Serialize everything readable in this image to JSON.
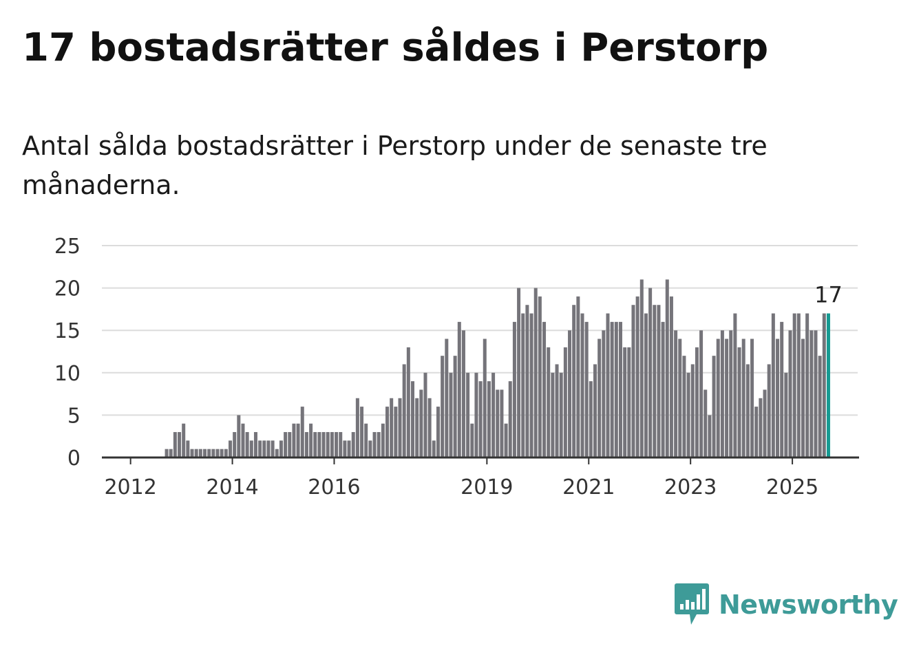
{
  "header": {
    "title": "17 bostadsrätter såldes i Perstorp",
    "subtitle": "Antal sålda bostadsrätter i Perstorp under de senaste tre månaderna."
  },
  "brand": {
    "name": "Newsworthy",
    "color": "#3e9b98",
    "icon": "bar-chart-speech-bubble-icon"
  },
  "colors": {
    "bar": "#75747a",
    "highlight": "#159a92",
    "grid": "#dcdcdc",
    "axis": "#333333"
  },
  "chart_data": {
    "type": "bar",
    "title": "17 bostadsrätter såldes i Perstorp",
    "subtitle": "Antal sålda bostadsrätter i Perstorp under de senaste tre månaderna.",
    "xlabel": "",
    "ylabel": "",
    "ylim": [
      0,
      25
    ],
    "yticks": [
      0,
      5,
      10,
      15,
      20,
      25
    ],
    "xticks": [
      "2012",
      "2014",
      "2016",
      "2019",
      "2021",
      "2023",
      "2025"
    ],
    "start": "2011-06",
    "frequency": "monthly",
    "grid": true,
    "legend": "none",
    "highlight_label": "17",
    "values": [
      0,
      0,
      0,
      0,
      0,
      0,
      0,
      0,
      0,
      0,
      0,
      0,
      0,
      0,
      0,
      1,
      1,
      3,
      3,
      4,
      2,
      1,
      1,
      1,
      1,
      1,
      1,
      1,
      1,
      1,
      2,
      3,
      5,
      4,
      3,
      2,
      3,
      2,
      2,
      2,
      2,
      1,
      2,
      3,
      3,
      4,
      4,
      6,
      3,
      4,
      3,
      3,
      3,
      3,
      3,
      3,
      3,
      2,
      2,
      3,
      7,
      6,
      4,
      2,
      3,
      3,
      4,
      6,
      7,
      6,
      7,
      11,
      13,
      9,
      7,
      8,
      10,
      7,
      2,
      6,
      12,
      14,
      10,
      12,
      16,
      15,
      10,
      4,
      10,
      9,
      14,
      9,
      10,
      8,
      8,
      4,
      9,
      16,
      20,
      17,
      18,
      17,
      20,
      19,
      16,
      13,
      10,
      11,
      10,
      13,
      15,
      18,
      19,
      17,
      16,
      9,
      11,
      14,
      15,
      17,
      16,
      16,
      16,
      13,
      13,
      18,
      19,
      21,
      17,
      20,
      18,
      18,
      16,
      21,
      19,
      15,
      14,
      12,
      10,
      11,
      13,
      15,
      8,
      5,
      12,
      14,
      15,
      14,
      15,
      17,
      13,
      14,
      11,
      14,
      6,
      7,
      8,
      11,
      17,
      14,
      16,
      10,
      15,
      17,
      17,
      14,
      17,
      15,
      15,
      12,
      17,
      17
    ]
  }
}
